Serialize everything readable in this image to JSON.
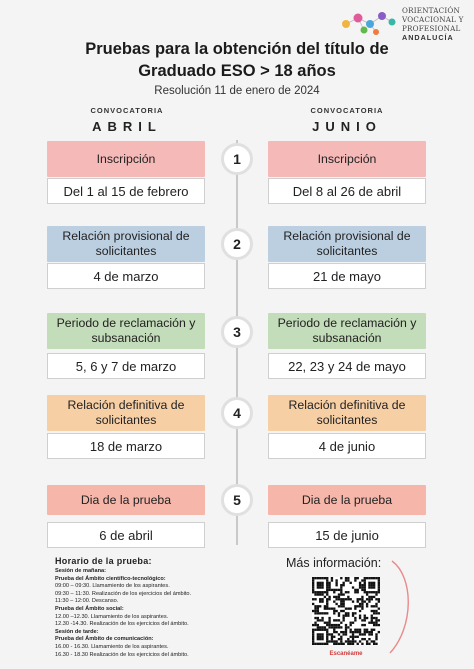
{
  "logo": {
    "line1": "ORIENTACIÓN",
    "line2": "VOCACIONAL Y",
    "line3": "PROFESIONAL",
    "line4": "ANDALUCÍA"
  },
  "title": {
    "line1": "Pruebas para la obtención del título de",
    "line2": "Graduado ESO > 18 años"
  },
  "subtitle": "Resolución 11 de enero de 2024",
  "left": {
    "conv": "CONVOCATORIA",
    "month": "ABRIL"
  },
  "right": {
    "conv": "CONVOCATORIA",
    "month": "JUNIO"
  },
  "steps": [
    {
      "num": "1",
      "label": "Inscripción",
      "left": "Del 1 al 15 de febrero",
      "right": "Del 8 al 26 de abril",
      "color": "#f5b9b8"
    },
    {
      "num": "2",
      "label": "Relación provisional de solicitantes",
      "left": "4 de marzo",
      "right": "21 de mayo",
      "color": "#bccfe0"
    },
    {
      "num": "3",
      "label": "Periodo de reclamación y subsanación",
      "left": "5, 6 y 7 de marzo",
      "right": "22, 23 y 24 de mayo",
      "color": "#c3dcb9"
    },
    {
      "num": "4",
      "label": "Relación definitiva de solicitantes",
      "left": "18 de marzo",
      "right": "4 de junio",
      "color": "#f7cfa5"
    },
    {
      "num": "5",
      "label": "Dia de la prueba",
      "left": "6 de abril",
      "right": "15 de junio",
      "color": "#f6b7aa"
    }
  ],
  "schedule": {
    "title": "Horario de la prueba:",
    "lines": [
      {
        "text": "Sesión de mañana:",
        "bold": true
      },
      {
        "text": "Prueba del Ámbito científico-tecnológico:",
        "bold": true
      },
      {
        "text": "09:00 – 09:30. Llamamiento de los aspirantes.",
        "bold": false
      },
      {
        "text": "09:30 – 11:30. Realización de los ejercicios del ámbito.",
        "bold": false
      },
      {
        "text": "11:30 – 12:00. Descanso.",
        "bold": false
      },
      {
        "text": "Prueba del Ámbito social:",
        "bold": true
      },
      {
        "text": "12.00 –12.30. Llamamiento de los aspirantes.",
        "bold": false
      },
      {
        "text": "12.30 -14.30. Realización de los ejercicios del ámbito.",
        "bold": false
      },
      {
        "text": "Sesión de tarde:",
        "bold": true
      },
      {
        "text": "Prueba del Ámbito de comunicación:",
        "bold": true
      },
      {
        "text": "16.00 - 16.30. Llamamiento de los aspirantes.",
        "bold": false
      },
      {
        "text": "16.30 - 18.30 Realización de los ejercicios del ámbito.",
        "bold": false
      }
    ]
  },
  "more_info": "Más información:",
  "scan_label": "Escanéame"
}
